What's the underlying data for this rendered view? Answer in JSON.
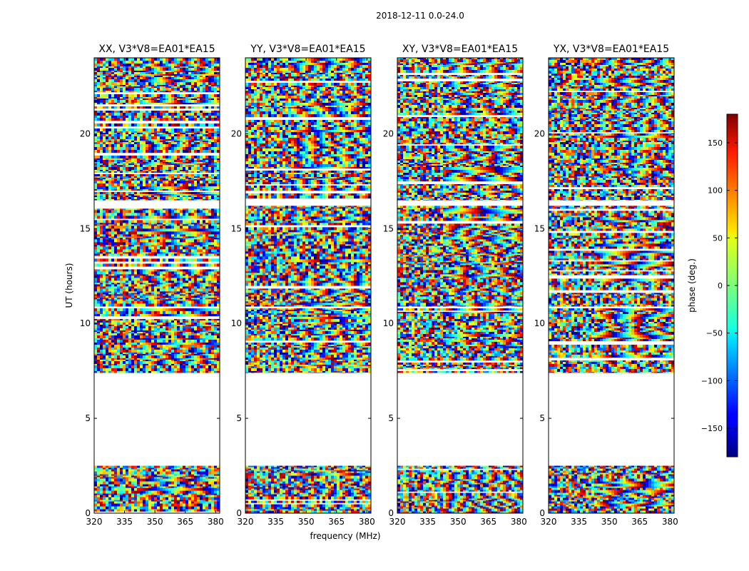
{
  "chart_data": {
    "type": "heatmap",
    "suptitle": "2018-12-11 0.0-24.0",
    "xlabel": "frequency (MHz)",
    "ylabel": "UT (hours)",
    "xlim": [
      320,
      382
    ],
    "ylim": [
      0,
      24
    ],
    "x_ticks": [
      320,
      335,
      350,
      365,
      380
    ],
    "y_ticks": [
      0,
      5,
      10,
      15,
      20
    ],
    "panels": [
      {
        "title": "XX, V3*V8=EA01*EA15",
        "pol": "XX"
      },
      {
        "title": "YY, V3*V8=EA01*EA15",
        "pol": "YY"
      },
      {
        "title": "XY, V3*V8=EA01*EA15",
        "pol": "XY"
      },
      {
        "title": "YX, V3*V8=EA01*EA15",
        "pol": "YX"
      }
    ],
    "colorbar": {
      "label": "phase (deg.)",
      "range": [
        -180,
        180
      ],
      "ticks": [
        -150,
        -100,
        -50,
        0,
        50,
        100,
        150
      ],
      "tick_labels": [
        "−150",
        "−100",
        "−50",
        "0",
        "50",
        "100",
        "150"
      ],
      "colormap": "jet"
    },
    "data_blocks_ut": [
      [
        0.0,
        2.5
      ],
      [
        7.4,
        10.8
      ],
      [
        10.9,
        16.2
      ],
      [
        16.5,
        24.0
      ]
    ],
    "flagged_gap_ut": [
      [
        2.5,
        7.4
      ]
    ]
  }
}
